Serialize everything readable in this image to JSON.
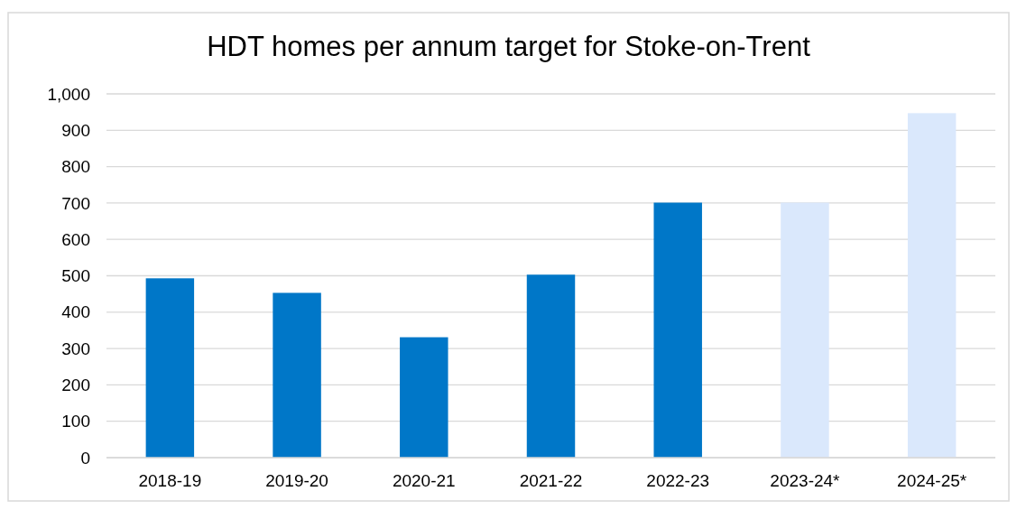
{
  "chart_data": {
    "type": "bar",
    "title": "HDT homes per annum target for Stoke-on-Trent",
    "categories": [
      "2018-19",
      "2019-20",
      "2020-21",
      "2021-22",
      "2022-23",
      "2023-24*",
      "2024-25*"
    ],
    "values": [
      493,
      453,
      331,
      503,
      701,
      701,
      947
    ],
    "colors": [
      "#0077c8",
      "#0077c8",
      "#0077c8",
      "#0077c8",
      "#0077c8",
      "#dae8fc",
      "#dae8fc"
    ],
    "ylim": [
      0,
      1000
    ],
    "yticks": [
      0,
      {
        "value": 100,
        "label": "100"
      },
      {
        "value": 200,
        "label": "200"
      },
      {
        "value": 300,
        "label": "300"
      },
      {
        "value": 400,
        "label": "400"
      },
      {
        "value": 500,
        "label": "500"
      },
      {
        "value": 600,
        "label": "600"
      },
      {
        "value": 700,
        "label": "700"
      },
      {
        "value": 800,
        "label": "800"
      },
      {
        "value": 900,
        "label": "900"
      },
      {
        "value": 1000,
        "label": "1,000"
      }
    ],
    "grid": "y"
  }
}
